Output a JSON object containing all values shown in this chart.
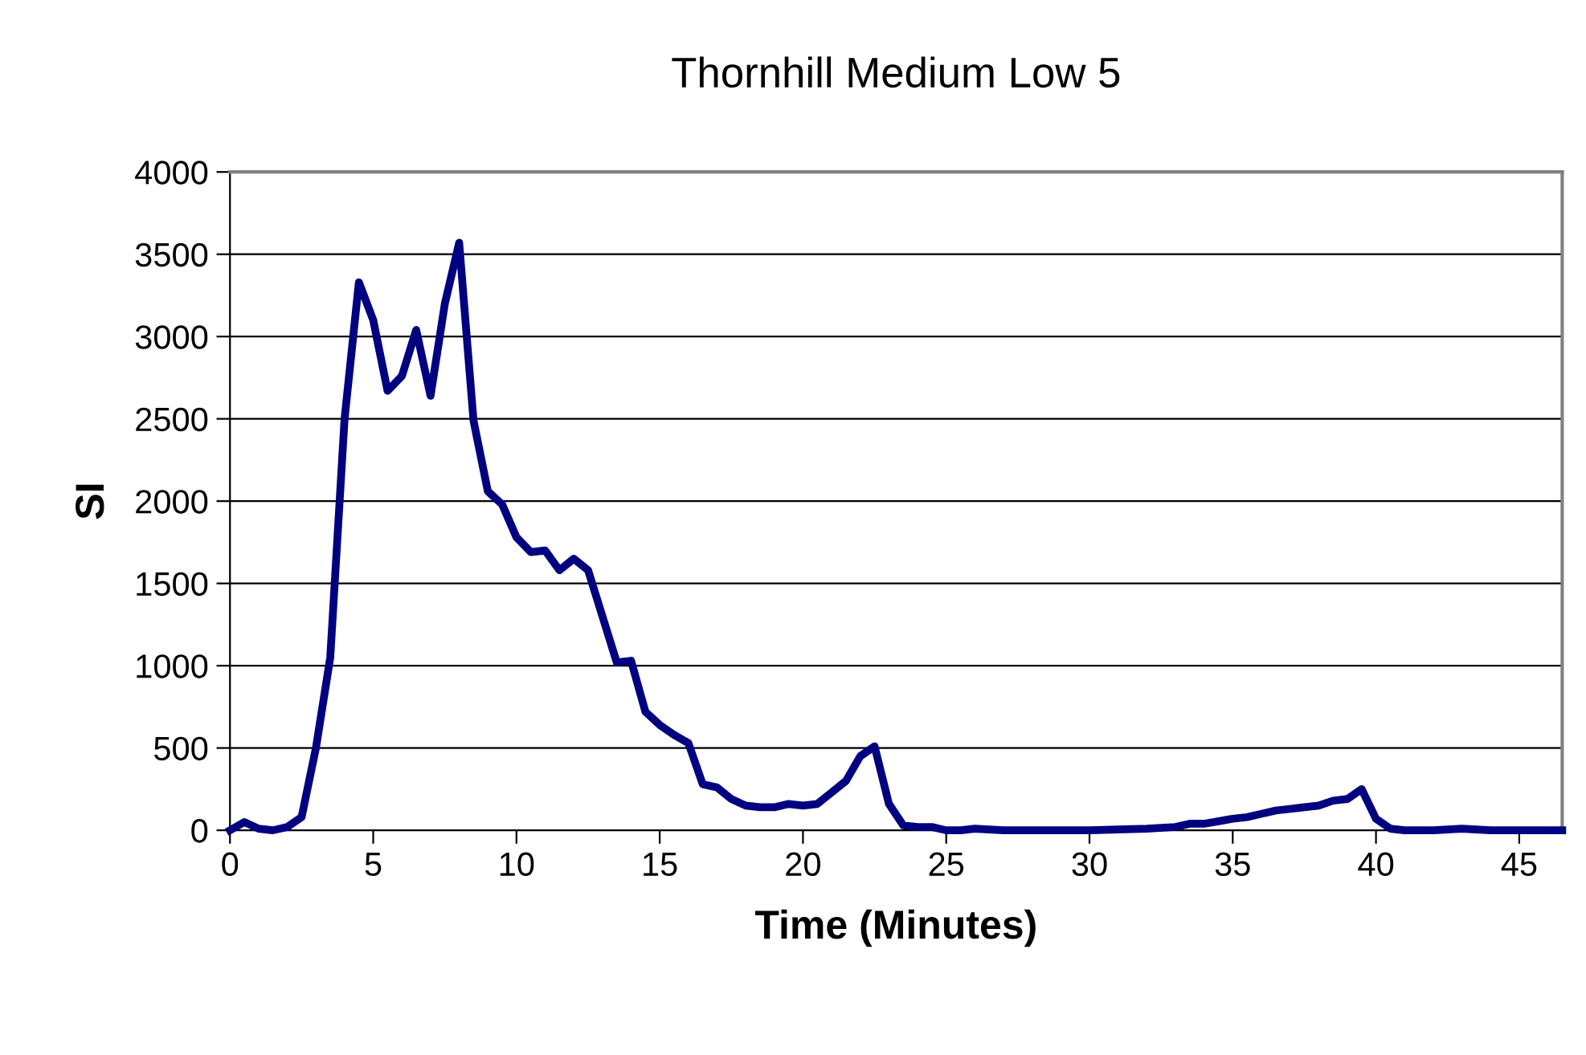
{
  "chart_data": {
    "type": "line",
    "title": "Thornhill Medium Low 5",
    "xlabel": "Time (Minutes)",
    "ylabel": "SI",
    "series": [
      {
        "color": "#000080",
        "x": [
          0,
          0.5,
          1,
          1.5,
          2,
          2.5,
          3,
          3.5,
          4,
          4.5,
          5,
          5.5,
          6,
          6.5,
          7,
          7.5,
          8,
          8.5,
          9,
          9.5,
          10,
          10.5,
          11,
          11.5,
          12,
          12.5,
          13,
          13.5,
          14,
          14.5,
          15,
          15.5,
          16,
          16.5,
          17,
          17.5,
          18,
          18.5,
          19,
          19.5,
          20,
          20.5,
          21,
          21.5,
          22,
          22.5,
          23,
          23.5,
          24,
          24.5,
          25,
          25.5,
          26,
          27,
          28,
          29,
          30,
          31,
          32,
          33,
          33.5,
          34,
          35,
          35.5,
          36,
          36.5,
          37,
          37.5,
          38,
          38.5,
          39,
          39.5,
          40,
          40.5,
          41,
          42,
          43,
          44,
          45,
          46.5
        ],
        "values": [
          0,
          50,
          10,
          0,
          20,
          80,
          500,
          1050,
          2500,
          3330,
          3100,
          2670,
          2760,
          3040,
          2640,
          3200,
          3570,
          2490,
          2060,
          1980,
          1780,
          1690,
          1700,
          1580,
          1650,
          1580,
          1300,
          1020,
          1030,
          720,
          640,
          580,
          530,
          280,
          260,
          190,
          150,
          140,
          140,
          160,
          150,
          160,
          230,
          300,
          450,
          510,
          160,
          30,
          20,
          20,
          0,
          0,
          10,
          0,
          0,
          0,
          0,
          5,
          10,
          20,
          40,
          40,
          70,
          80,
          100,
          120,
          130,
          140,
          150,
          180,
          190,
          250,
          70,
          10,
          0,
          0,
          10,
          0,
          0,
          0
        ]
      }
    ],
    "xlim": [
      0,
      46.5
    ],
    "xticks": [
      0,
      5,
      10,
      15,
      20,
      25,
      30,
      35,
      40,
      45
    ],
    "ylim": [
      0,
      4000
    ],
    "yticks": [
      0,
      500,
      1000,
      1500,
      2000,
      2500,
      3000,
      3500,
      4000
    ],
    "grid": "y",
    "legend": false,
    "marker": "none",
    "line_style": "solid"
  }
}
